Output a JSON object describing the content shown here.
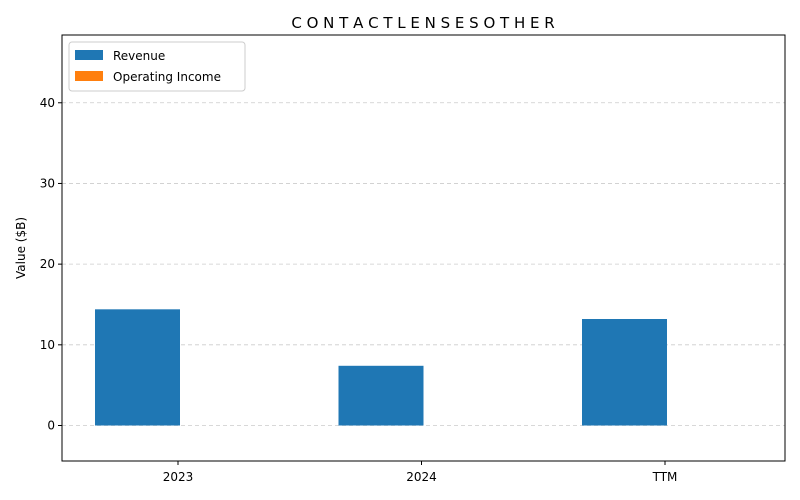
{
  "chart_data": {
    "type": "bar",
    "title": "C O N T A C T L E N S E S O T H E R",
    "xlabel": "",
    "ylabel": "Value ($B)",
    "categories": [
      "2023",
      "2024",
      "TTM"
    ],
    "series": [
      {
        "name": "Revenue",
        "values": [
          14.4,
          7.4,
          13.2
        ],
        "color": "#1f77b4"
      },
      {
        "name": "Operating Income",
        "values": [
          0,
          0,
          0
        ],
        "color": "#ff7f0e"
      }
    ],
    "ylim": [
      -4.4,
      48.4
    ],
    "yticks": [
      0,
      10,
      20,
      30,
      40
    ],
    "grid": "y-dashed",
    "legend": "top-left"
  }
}
